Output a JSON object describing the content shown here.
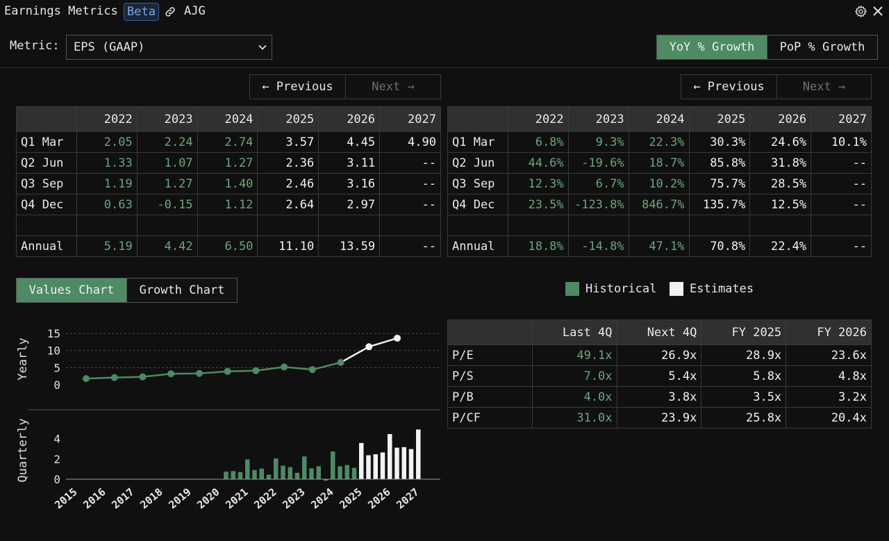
{
  "window": {
    "title": "Earnings Metrics",
    "beta_label": "Beta",
    "ticker": "AJG"
  },
  "metric": {
    "label": "Metric:",
    "selected": "EPS (GAAP)"
  },
  "growth_toggle": {
    "yoy_label": "YoY % Growth",
    "pop_label": "PoP % Growth",
    "active": "yoy"
  },
  "pager": {
    "previous_label": "← Previous",
    "next_label": "Next →"
  },
  "values_table": {
    "columns": [
      "",
      "2022",
      "2023",
      "2024",
      "2025",
      "2026",
      "2027"
    ],
    "rows": [
      {
        "label": "Q1 Mar",
        "cells": [
          "2.05",
          "2.24",
          "2.74",
          "3.57",
          "4.45",
          "4.90"
        ]
      },
      {
        "label": "Q2 Jun",
        "cells": [
          "1.33",
          "1.07",
          "1.27",
          "2.36",
          "3.11",
          "--"
        ]
      },
      {
        "label": "Q3 Sep",
        "cells": [
          "1.19",
          "1.27",
          "1.40",
          "2.46",
          "3.16",
          "--"
        ]
      },
      {
        "label": "Q4 Dec",
        "cells": [
          "0.63",
          "-0.15",
          "1.12",
          "2.64",
          "2.97",
          "--"
        ]
      },
      {
        "label": "",
        "cells": [
          "",
          "",
          "",
          "",
          "",
          ""
        ]
      },
      {
        "label": "Annual",
        "cells": [
          "5.19",
          "4.42",
          "6.50",
          "11.10",
          "13.59",
          "--"
        ]
      }
    ]
  },
  "growth_table": {
    "columns": [
      "",
      "2022",
      "2023",
      "2024",
      "2025",
      "2026",
      "2027"
    ],
    "rows": [
      {
        "label": "Q1 Mar",
        "cells": [
          "6.8%",
          "9.3%",
          "22.3%",
          "30.3%",
          "24.6%",
          "10.1%"
        ]
      },
      {
        "label": "Q2 Jun",
        "cells": [
          "44.6%",
          "-19.6%",
          "18.7%",
          "85.8%",
          "31.8%",
          "--"
        ]
      },
      {
        "label": "Q3 Sep",
        "cells": [
          "12.3%",
          "6.7%",
          "10.2%",
          "75.7%",
          "28.5%",
          "--"
        ]
      },
      {
        "label": "Q4 Dec",
        "cells": [
          "23.5%",
          "-123.8%",
          "846.7%",
          "135.7%",
          "12.5%",
          "--"
        ]
      },
      {
        "label": "",
        "cells": [
          "",
          "",
          "",
          "",
          "",
          ""
        ]
      },
      {
        "label": "Annual",
        "cells": [
          "18.8%",
          "-14.8%",
          "47.1%",
          "70.8%",
          "22.4%",
          "--"
        ]
      }
    ]
  },
  "chart_toggle": {
    "values_label": "Values Chart",
    "growth_label": "Growth Chart",
    "active": "values"
  },
  "legend": {
    "historical_label": "Historical",
    "estimates_label": "Estimates",
    "historical_color": "#4e8a63",
    "estimates_color": "#f2f2f2"
  },
  "multiples_table": {
    "columns": [
      "",
      "Last 4Q",
      "Next 4Q",
      "FY 2025",
      "FY 2026"
    ],
    "rows": [
      {
        "label": "P/E",
        "cells": [
          "49.1x",
          "26.9x",
          "28.9x",
          "23.6x"
        ]
      },
      {
        "label": "P/S",
        "cells": [
          "7.0x",
          "5.4x",
          "5.8x",
          "4.8x"
        ]
      },
      {
        "label": "P/B",
        "cells": [
          "4.0x",
          "3.8x",
          "3.5x",
          "3.2x"
        ]
      },
      {
        "label": "P/CF",
        "cells": [
          "31.0x",
          "23.9x",
          "25.8x",
          "20.4x"
        ]
      }
    ]
  },
  "chart_data": [
    {
      "type": "line",
      "ylabel": "Yearly",
      "ylim": [
        0,
        15
      ],
      "yticks": [
        "0",
        "5",
        "10",
        "15"
      ],
      "x": [
        "2015",
        "2016",
        "2017",
        "2018",
        "2019",
        "2020",
        "2021",
        "2022",
        "2023",
        "2024",
        "2025",
        "2026"
      ],
      "values": [
        1.8,
        2.1,
        2.3,
        3.2,
        3.3,
        3.9,
        4.1,
        5.19,
        4.42,
        6.5,
        11.1,
        13.59
      ],
      "estimate_from_index": 10,
      "grid": "horizontal dashed"
    },
    {
      "type": "bar",
      "ylabel": "Quarterly",
      "ylim": [
        0,
        5
      ],
      "yticks": [
        "0",
        "2",
        "4"
      ],
      "xticks": [
        "2015",
        "2016",
        "2017",
        "2018",
        "2019",
        "2020",
        "2021",
        "2022",
        "2023",
        "2024",
        "2025",
        "2026",
        "2027"
      ],
      "quarters": [
        {
          "year": 2020,
          "values": [
            0.75,
            0.8,
            0.7
          ]
        },
        {
          "year": 2021,
          "values": [
            1.95,
            0.9,
            1.05,
            0.45
          ]
        },
        {
          "year": 2022,
          "values": [
            2.05,
            1.33,
            1.19,
            0.63
          ]
        },
        {
          "year": 2023,
          "values": [
            2.24,
            1.07,
            1.27,
            -0.15
          ]
        },
        {
          "year": 2024,
          "values": [
            2.74,
            1.27,
            1.4,
            1.12
          ]
        },
        {
          "year": 2025,
          "values": [
            3.57,
            2.36,
            2.46,
            2.64
          ],
          "estimate": true
        },
        {
          "year": 2026,
          "values": [
            4.45,
            3.11,
            3.16,
            2.97
          ],
          "estimate": true
        },
        {
          "year": 2027,
          "values": [
            4.9
          ],
          "estimate": true
        }
      ]
    }
  ]
}
